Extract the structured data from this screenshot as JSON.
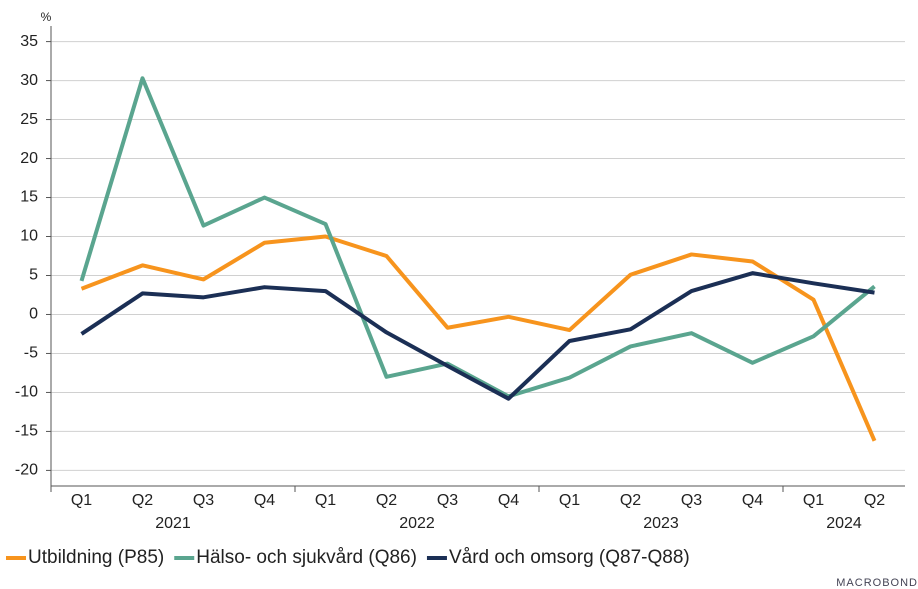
{
  "chart_data": {
    "type": "line",
    "unit_label": "%",
    "year_groups": [
      {
        "label": "2021",
        "quarters": [
          "Q1",
          "Q2",
          "Q3",
          "Q4"
        ]
      },
      {
        "label": "2022",
        "quarters": [
          "Q1",
          "Q2",
          "Q3",
          "Q4"
        ]
      },
      {
        "label": "2023",
        "quarters": [
          "Q1",
          "Q2",
          "Q3",
          "Q4"
        ]
      },
      {
        "label": "2024",
        "quarters": [
          "Q1",
          "Q2"
        ]
      }
    ],
    "series": [
      {
        "name": "Utbildning (P85)",
        "color": "#f7941d",
        "values": [
          3.3,
          6.3,
          4.5,
          9.2,
          10.0,
          7.5,
          -1.7,
          -0.3,
          -2.0,
          5.1,
          7.7,
          6.8,
          1.9,
          -16.2
        ]
      },
      {
        "name": "Hälso- och sjukvård (Q86)",
        "color": "#5aa58f",
        "values": [
          4.3,
          30.3,
          11.4,
          15.0,
          11.6,
          -8.0,
          -6.3,
          -10.5,
          -8.1,
          -4.1,
          -2.4,
          -6.2,
          -2.8,
          3.6
        ]
      },
      {
        "name": "Vård och omsorg (Q87-Q88)",
        "color": "#1b2f55",
        "values": [
          -2.5,
          2.7,
          2.2,
          3.5,
          3.0,
          -2.3,
          -6.6,
          -10.8,
          -3.4,
          -1.9,
          3.0,
          5.3,
          4.0,
          2.8
        ]
      }
    ],
    "ylim": [
      -22,
      37
    ],
    "yticks": [
      -20,
      -15,
      -10,
      -5,
      0,
      5,
      10,
      15,
      20,
      25,
      30,
      35
    ],
    "grid": true,
    "legend": "bottom",
    "watermark": "MACROBOND"
  }
}
